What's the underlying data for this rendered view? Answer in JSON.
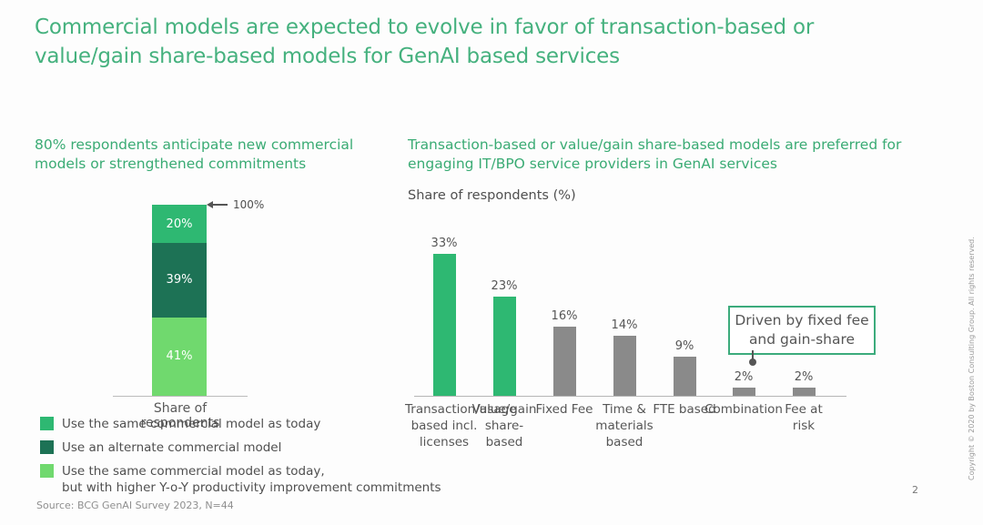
{
  "slide": {
    "title": "Commercial models are expected to evolve in favor of transaction-based or value/gain share-based models for GenAI based services",
    "page_number": "2",
    "copyright": "Copyright © 2020 by Boston Consulting Group. All rights reserved.",
    "source": "Source: BCG GenAI Survey 2023, N=44"
  },
  "colors": {
    "title_green": "#45b17e",
    "medium_green": "#2eb872",
    "dark_green": "#1d7255",
    "light_green": "#70d96e",
    "bar_gray": "#8a8a8a",
    "text_dark": "#565656"
  },
  "left_section": {
    "heading": "80% respondents anticipate new commercial models or strengthened commitments",
    "total_annotation": "100%",
    "x_axis_label": "Share of respondents",
    "legend": [
      {
        "color": "#2eb872",
        "lines": [
          "Use the same commercial model as today"
        ]
      },
      {
        "color": "#1d7255",
        "lines": [
          "Use an alternate commercial model"
        ]
      },
      {
        "color": "#70d96e",
        "lines": [
          "Use the same commercial model as today,",
          "but with higher Y-o-Y productivity improvement commitments"
        ]
      }
    ]
  },
  "right_section": {
    "heading": "Transaction-based or value/gain share-based models are preferred for engaging IT/BPO service providers in GenAI services",
    "y_axis_caption": "Share of respondents (%)",
    "callout": "Driven by fixed fee and gain-share"
  },
  "chart_data": [
    {
      "type": "bar",
      "subtype": "single-stacked-column",
      "title": "80% respondents anticipate new commercial models or strengthened commitments",
      "categories": [
        "Share of respondents"
      ],
      "series": [
        {
          "name": "Use the same commercial model as today",
          "values": [
            20
          ],
          "color": "#2eb872"
        },
        {
          "name": "Use an alternate commercial model",
          "values": [
            39
          ],
          "color": "#1d7255"
        },
        {
          "name": "Use the same commercial model as today, but with higher Y-o-Y productivity improvement commitments",
          "values": [
            41
          ],
          "color": "#70d96e"
        }
      ],
      "annotation": "100%",
      "ylim": [
        0,
        100
      ],
      "xlabel": "Share of respondents",
      "legend_position": "bottom",
      "grid": false
    },
    {
      "type": "bar",
      "title": "Transaction-based or value/gain share-based models are preferred for engaging IT/BPO service providers in GenAI services",
      "ylabel": "Share of respondents (%)",
      "categories": [
        "Transaction/usage based incl. licenses",
        "Value/gain share-based",
        "Fixed Fee",
        "Time & materials based",
        "FTE based",
        "Combination",
        "Fee at risk"
      ],
      "values": [
        33,
        23,
        16,
        14,
        9,
        2,
        2
      ],
      "data_labels": [
        "33%",
        "23%",
        "16%",
        "14%",
        "9%",
        "2%",
        "2%"
      ],
      "highlight_indices": [
        0,
        1
      ],
      "highlight_color": "#2eb872",
      "default_color": "#8a8a8a",
      "annotation": "Driven by fixed fee and gain-share",
      "annotation_target": "Combination",
      "ylim": [
        0,
        35
      ],
      "grid": false
    }
  ]
}
